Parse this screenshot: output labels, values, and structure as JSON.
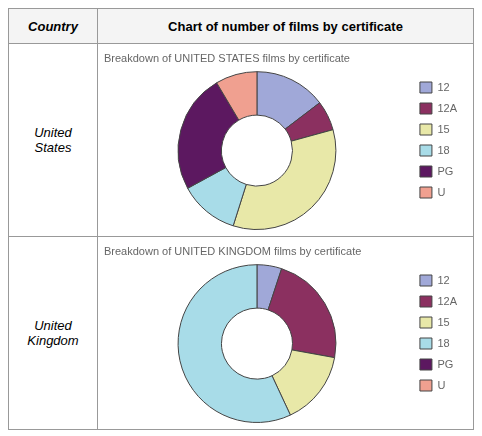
{
  "title": "Chart of number of films by certificate",
  "annotations": [
    "Country"
  ],
  "chart_data": [
    {
      "type": "doughnut",
      "title": "Breakdown of UNITED STATES films by certificate",
      "subtitle": "United\nStates",
      "categories": [
        "12",
        "12A",
        "15",
        "18",
        "PG",
        "U"
      ],
      "values": [
        12,
        5,
        28,
        10,
        20,
        7
      ],
      "colors": [
        "#a0a8d8",
        "#8b3060",
        "#e8e8a8",
        "#a8dce8",
        "#5c1860",
        "#f0a090"
      ],
      "legend": "right"
    },
    {
      "type": "doughnut",
      "title": "Breakdown of UNITED KINGDOM films by certificate",
      "subtitle": "United\nKingdom",
      "categories": [
        "12",
        "12A",
        "15",
        "18",
        "PG",
        "U"
      ],
      "values": [
        4,
        18,
        12,
        45,
        0,
        0
      ],
      "colors": [
        "#a0a8d8",
        "#8b3060",
        "#e8e8a8",
        "#a8dce8",
        "#5c1860",
        "#f0a090"
      ],
      "legend": "right"
    }
  ]
}
